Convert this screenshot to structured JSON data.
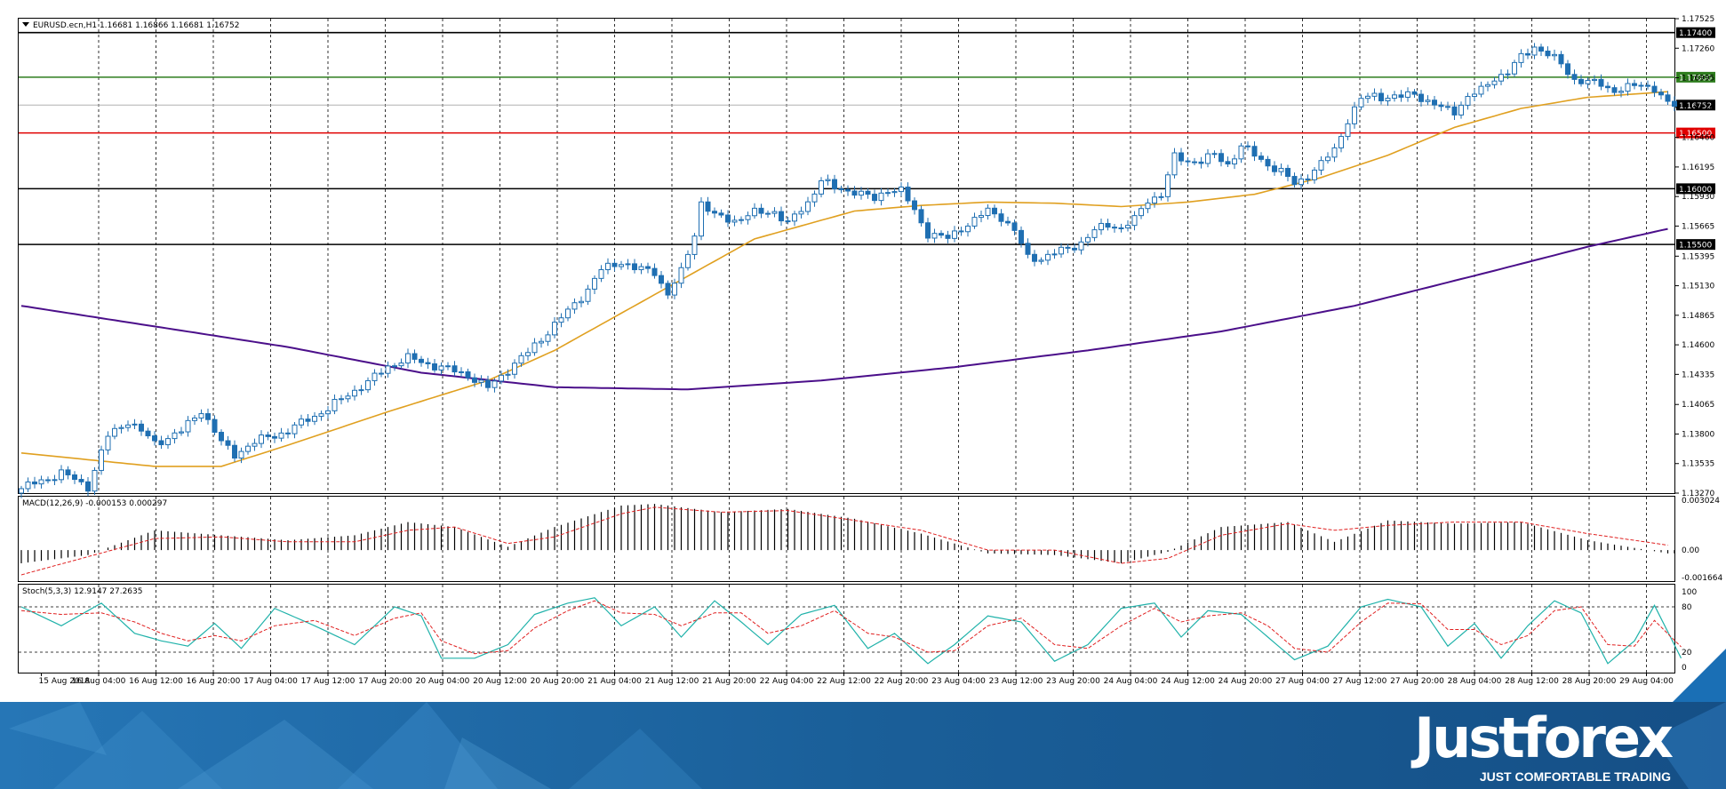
{
  "chart_data": {
    "type": "candlestick",
    "symbol_header": "EURUSD.ecn,H1  1.16681 1.16866 1.16681 1.16752",
    "ohlc": {
      "open": 1.16681,
      "high": 1.16866,
      "low": 1.16681,
      "close": 1.16752
    },
    "price_axis": {
      "range": [
        1.1327,
        1.17525
      ],
      "ticks": [
        "1.17525",
        "1.17260",
        "1.16995",
        "1.16730",
        "1.16460",
        "1.16195",
        "1.15930",
        "1.15665",
        "1.15395",
        "1.15130",
        "1.14865",
        "1.14600",
        "1.14335",
        "1.14065",
        "1.13800",
        "1.13535",
        "1.13270"
      ]
    },
    "horizontal_levels": [
      {
        "value": 1.174,
        "label": "1.17400",
        "color": "#000000"
      },
      {
        "value": 1.17,
        "label": "1.17000",
        "color": "#2e7d1e"
      },
      {
        "value": 1.1675,
        "label": "1.16752",
        "color": "#b0b0b0"
      },
      {
        "value": 1.165,
        "label": "1.16500",
        "color": "#e00000"
      },
      {
        "value": 1.16,
        "label": "1.16000",
        "color": "#000000"
      },
      {
        "value": 1.155,
        "label": "1.15500",
        "color": "#000000"
      }
    ],
    "time_axis_labels": [
      "15 Aug 2018",
      "16 Aug 04:00",
      "16 Aug 12:00",
      "16 Aug 20:00",
      "17 Aug 04:00",
      "17 Aug 12:00",
      "17 Aug 20:00",
      "20 Aug 04:00",
      "20 Aug 12:00",
      "20 Aug 20:00",
      "21 Aug 04:00",
      "21 Aug 12:00",
      "21 Aug 20:00",
      "22 Aug 04:00",
      "22 Aug 12:00",
      "22 Aug 20:00",
      "23 Aug 04:00",
      "23 Aug 12:00",
      "23 Aug 20:00",
      "24 Aug 04:00",
      "24 Aug 12:00",
      "24 Aug 20:00",
      "27 Aug 04:00",
      "27 Aug 12:00",
      "27 Aug 20:00",
      "28 Aug 04:00",
      "28 Aug 12:00",
      "28 Aug 20:00",
      "29 Aug 04:00"
    ],
    "close_path": [
      [
        0,
        1.1331
      ],
      [
        6,
        1.1345
      ],
      [
        10,
        1.1333
      ],
      [
        13,
        1.1378
      ],
      [
        16,
        1.1392
      ],
      [
        20,
        1.1372
      ],
      [
        24,
        1.1382
      ],
      [
        27,
        1.1402
      ],
      [
        30,
        1.1372
      ],
      [
        32,
        1.1362
      ],
      [
        34,
        1.1369
      ],
      [
        37,
        1.1378
      ],
      [
        40,
        1.1382
      ],
      [
        43,
        1.1394
      ],
      [
        46,
        1.1402
      ],
      [
        49,
        1.1416
      ],
      [
        52,
        1.1426
      ],
      [
        55,
        1.1441
      ],
      [
        58,
        1.1448
      ],
      [
        61,
        1.1443
      ],
      [
        64,
        1.1438
      ],
      [
        67,
        1.1433
      ],
      [
        70,
        1.1421
      ],
      [
        73,
        1.1438
      ],
      [
        76,
        1.1453
      ],
      [
        79,
        1.1472
      ],
      [
        82,
        1.149
      ],
      [
        85,
        1.151
      ],
      [
        87,
        1.1527
      ],
      [
        90,
        1.1535
      ],
      [
        92,
        1.1528
      ],
      [
        95,
        1.1526
      ],
      [
        97,
        1.1505
      ],
      [
        99,
        1.1525
      ],
      [
        101,
        1.156
      ],
      [
        102,
        1.1588
      ],
      [
        104,
        1.1575
      ],
      [
        107,
        1.1572
      ],
      [
        110,
        1.1578
      ],
      [
        113,
        1.158
      ],
      [
        115,
        1.1568
      ],
      [
        118,
        1.1588
      ],
      [
        120,
        1.1608
      ],
      [
        122,
        1.16
      ],
      [
        125,
        1.1598
      ],
      [
        128,
        1.159
      ],
      [
        130,
        1.16
      ],
      [
        132,
        1.1598
      ],
      [
        134,
        1.158
      ],
      [
        136,
        1.156
      ],
      [
        139,
        1.1555
      ],
      [
        141,
        1.1565
      ],
      [
        143,
        1.1572
      ],
      [
        145,
        1.158
      ],
      [
        147,
        1.1575
      ],
      [
        149,
        1.1562
      ],
      [
        151,
        1.1538
      ],
      [
        153,
        1.1538
      ],
      [
        155,
        1.1542
      ],
      [
        157,
        1.1546
      ],
      [
        159,
        1.1552
      ],
      [
        161,
        1.1562
      ],
      [
        163,
        1.1568
      ],
      [
        165,
        1.1565
      ],
      [
        167,
        1.1572
      ],
      [
        169,
        1.159
      ],
      [
        171,
        1.1595
      ],
      [
        173,
        1.1628
      ],
      [
        175,
        1.1625
      ],
      [
        177,
        1.1625
      ],
      [
        179,
        1.163
      ],
      [
        181,
        1.1622
      ],
      [
        183,
        1.1638
      ],
      [
        185,
        1.163
      ],
      [
        187,
        1.1622
      ],
      [
        189,
        1.1615
      ],
      [
        191,
        1.1604
      ],
      [
        193,
        1.1612
      ],
      [
        195,
        1.1622
      ],
      [
        197,
        1.1635
      ],
      [
        199,
        1.1662
      ],
      [
        201,
        1.168
      ],
      [
        203,
        1.1684
      ],
      [
        205,
        1.1682
      ],
      [
        207,
        1.1682
      ],
      [
        209,
        1.1686
      ],
      [
        211,
        1.1678
      ],
      [
        213,
        1.1672
      ],
      [
        215,
        1.167
      ],
      [
        217,
        1.1682
      ],
      [
        219,
        1.1688
      ],
      [
        221,
        1.17
      ],
      [
        223,
        1.1704
      ],
      [
        225,
        1.1718
      ],
      [
        227,
        1.1728
      ],
      [
        229,
        1.172
      ],
      [
        231,
        1.1712
      ],
      [
        233,
        1.1698
      ],
      [
        235,
        1.1695
      ],
      [
        237,
        1.1694
      ],
      [
        239,
        1.1688
      ],
      [
        241,
        1.169
      ],
      [
        243,
        1.1694
      ],
      [
        245,
        1.169
      ],
      [
        247,
        1.1675
      ]
    ],
    "ma_orange": [
      [
        0,
        1.1363
      ],
      [
        20,
        1.1351
      ],
      [
        30,
        1.1351
      ],
      [
        40,
        1.137
      ],
      [
        55,
        1.14
      ],
      [
        70,
        1.1428
      ],
      [
        80,
        1.1455
      ],
      [
        95,
        1.1505
      ],
      [
        110,
        1.1555
      ],
      [
        125,
        1.158
      ],
      [
        135,
        1.1585
      ],
      [
        145,
        1.1588
      ],
      [
        155,
        1.1587
      ],
      [
        165,
        1.1584
      ],
      [
        175,
        1.1588
      ],
      [
        185,
        1.1595
      ],
      [
        195,
        1.161
      ],
      [
        205,
        1.163
      ],
      [
        215,
        1.1655
      ],
      [
        225,
        1.1672
      ],
      [
        235,
        1.1682
      ],
      [
        247,
        1.1687
      ]
    ],
    "ma_purple": [
      [
        0,
        1.1495
      ],
      [
        40,
        1.1458
      ],
      [
        60,
        1.1435
      ],
      [
        80,
        1.1422
      ],
      [
        100,
        1.142
      ],
      [
        120,
        1.1428
      ],
      [
        140,
        1.144
      ],
      [
        160,
        1.1455
      ],
      [
        180,
        1.1472
      ],
      [
        200,
        1.1495
      ],
      [
        220,
        1.1525
      ],
      [
        235,
        1.1548
      ],
      [
        247,
        1.1564
      ]
    ],
    "macd": {
      "header": "MACD(12,26,9) -0.000153 0.000297",
      "range": [
        -0.001664,
        0.003024
      ],
      "ticks": [
        "0.003024",
        "0.00",
        "-0.001664"
      ],
      "hist": [
        [
          0,
          -0.0008
        ],
        [
          10,
          -0.0003
        ],
        [
          20,
          0.0012
        ],
        [
          30,
          0.0009
        ],
        [
          40,
          0.0006
        ],
        [
          50,
          0.0009
        ],
        [
          58,
          0.0017
        ],
        [
          65,
          0.0014
        ],
        [
          73,
          0.0002
        ],
        [
          80,
          0.0014
        ],
        [
          90,
          0.0027
        ],
        [
          95,
          0.0028
        ],
        [
          105,
          0.0023
        ],
        [
          115,
          0.0025
        ],
        [
          125,
          0.0019
        ],
        [
          135,
          0.001
        ],
        [
          145,
          -0.0002
        ],
        [
          155,
          -0.0003
        ],
        [
          165,
          -0.0008
        ],
        [
          172,
          -0.0001
        ],
        [
          180,
          0.0014
        ],
        [
          190,
          0.0017
        ],
        [
          197,
          0.0005
        ],
        [
          205,
          0.0018
        ],
        [
          215,
          0.0016
        ],
        [
          225,
          0.0017
        ],
        [
          235,
          0.0006
        ],
        [
          247,
          -0.0002
        ]
      ],
      "signal": [
        [
          0,
          -0.0015
        ],
        [
          10,
          -0.0004
        ],
        [
          20,
          0.0007
        ],
        [
          30,
          0.0008
        ],
        [
          40,
          0.0005
        ],
        [
          50,
          0.0005
        ],
        [
          58,
          0.0012
        ],
        [
          65,
          0.0014
        ],
        [
          73,
          0.0004
        ],
        [
          80,
          0.0008
        ],
        [
          90,
          0.0022
        ],
        [
          95,
          0.0026
        ],
        [
          105,
          0.0023
        ],
        [
          115,
          0.0024
        ],
        [
          125,
          0.0018
        ],
        [
          135,
          0.0012
        ],
        [
          145,
          0.0
        ],
        [
          155,
          0.0
        ],
        [
          165,
          -0.0008
        ],
        [
          172,
          -0.0005
        ],
        [
          180,
          0.0009
        ],
        [
          190,
          0.0016
        ],
        [
          197,
          0.0012
        ],
        [
          205,
          0.0015
        ],
        [
          215,
          0.0017
        ],
        [
          225,
          0.0017
        ],
        [
          235,
          0.001
        ],
        [
          247,
          0.0003
        ]
      ]
    },
    "stoch": {
      "header": "Stoch(5,3,3) 12.9147 27.2635",
      "range": [
        0,
        100
      ],
      "ticks": [
        "100",
        "80",
        "20",
        "0"
      ],
      "levels": [
        80,
        20
      ],
      "k": [
        [
          0,
          80
        ],
        [
          6,
          55
        ],
        [
          12,
          85
        ],
        [
          17,
          45
        ],
        [
          21,
          35
        ],
        [
          25,
          28
        ],
        [
          29,
          58
        ],
        [
          33,
          25
        ],
        [
          38,
          78
        ],
        [
          44,
          55
        ],
        [
          50,
          30
        ],
        [
          56,
          80
        ],
        [
          60,
          68
        ],
        [
          63,
          12
        ],
        [
          68,
          12
        ],
        [
          73,
          30
        ],
        [
          77,
          70
        ],
        [
          82,
          85
        ],
        [
          86,
          92
        ],
        [
          90,
          55
        ],
        [
          95,
          80
        ],
        [
          99,
          40
        ],
        [
          104,
          88
        ],
        [
          108,
          60
        ],
        [
          112,
          30
        ],
        [
          117,
          70
        ],
        [
          122,
          82
        ],
        [
          127,
          25
        ],
        [
          131,
          45
        ],
        [
          136,
          5
        ],
        [
          140,
          30
        ],
        [
          145,
          68
        ],
        [
          150,
          60
        ],
        [
          155,
          8
        ],
        [
          160,
          30
        ],
        [
          165,
          78
        ],
        [
          170,
          85
        ],
        [
          174,
          40
        ],
        [
          178,
          75
        ],
        [
          183,
          70
        ],
        [
          187,
          40
        ],
        [
          191,
          10
        ],
        [
          196,
          28
        ],
        [
          201,
          80
        ],
        [
          205,
          90
        ],
        [
          210,
          80
        ],
        [
          214,
          28
        ],
        [
          218,
          58
        ],
        [
          222,
          12
        ],
        [
          226,
          55
        ],
        [
          230,
          88
        ],
        [
          234,
          72
        ],
        [
          238,
          5
        ],
        [
          242,
          35
        ],
        [
          245,
          82
        ],
        [
          249,
          12
        ]
      ],
      "d": [
        [
          0,
          75
        ],
        [
          6,
          70
        ],
        [
          12,
          72
        ],
        [
          17,
          60
        ],
        [
          21,
          45
        ],
        [
          25,
          35
        ],
        [
          29,
          42
        ],
        [
          33,
          35
        ],
        [
          38,
          55
        ],
        [
          44,
          62
        ],
        [
          50,
          42
        ],
        [
          56,
          65
        ],
        [
          60,
          72
        ],
        [
          63,
          35
        ],
        [
          68,
          18
        ],
        [
          73,
          22
        ],
        [
          77,
          52
        ],
        [
          82,
          75
        ],
        [
          86,
          88
        ],
        [
          90,
          72
        ],
        [
          95,
          70
        ],
        [
          99,
          55
        ],
        [
          104,
          72
        ],
        [
          108,
          72
        ],
        [
          112,
          45
        ],
        [
          117,
          55
        ],
        [
          122,
          75
        ],
        [
          127,
          45
        ],
        [
          131,
          40
        ],
        [
          136,
          20
        ],
        [
          140,
          22
        ],
        [
          145,
          55
        ],
        [
          150,
          65
        ],
        [
          155,
          30
        ],
        [
          160,
          25
        ],
        [
          165,
          55
        ],
        [
          170,
          78
        ],
        [
          174,
          60
        ],
        [
          178,
          68
        ],
        [
          183,
          72
        ],
        [
          187,
          55
        ],
        [
          191,
          25
        ],
        [
          196,
          20
        ],
        [
          201,
          60
        ],
        [
          205,
          85
        ],
        [
          210,
          84
        ],
        [
          214,
          50
        ],
        [
          218,
          50
        ],
        [
          222,
          30
        ],
        [
          226,
          42
        ],
        [
          230,
          75
        ],
        [
          234,
          80
        ],
        [
          238,
          30
        ],
        [
          242,
          28
        ],
        [
          245,
          62
        ],
        [
          249,
          27
        ]
      ]
    }
  },
  "branding": {
    "logo": "Justforex",
    "tagline": "JUST COMFORTABLE TRADING",
    "banner_color": "#1a5f99"
  }
}
